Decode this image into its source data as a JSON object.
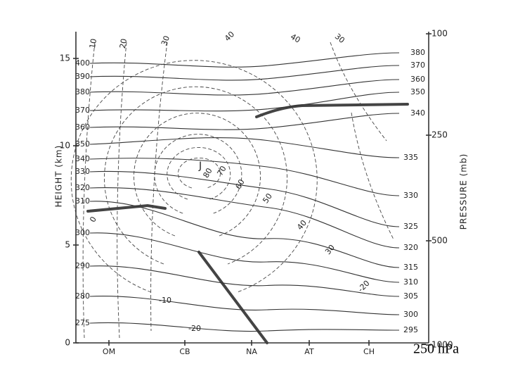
{
  "left_axis": {
    "title": "HEIGHT (km)",
    "ticks": [
      "0",
      "5",
      "10",
      "15"
    ]
  },
  "right_axis": {
    "title": "PRESSURE (mb)",
    "ticks": [
      "100",
      "250",
      "500",
      "1000"
    ]
  },
  "x_axis": {
    "ticks": [
      "OM",
      "CB",
      "NA",
      "AT",
      "CH"
    ]
  },
  "isentrope_labels": {
    "left": [
      "400",
      "390",
      "380",
      "370",
      "360",
      "350",
      "340",
      "330",
      "320",
      "310",
      "300",
      "290",
      "280",
      "275"
    ],
    "right": [
      "380",
      "370",
      "360",
      "350",
      "340",
      "335",
      "330",
      "325",
      "320",
      "315",
      "310",
      "305",
      "300",
      "295"
    ]
  },
  "isotach_labels": [
    "10",
    "20",
    "30",
    "40",
    "40",
    "30",
    "80",
    "70",
    "60",
    "50",
    "40",
    "30",
    "-20",
    "-10",
    "-20",
    "0"
  ],
  "jet_label": "J",
  "caption": "250 hPa"
}
